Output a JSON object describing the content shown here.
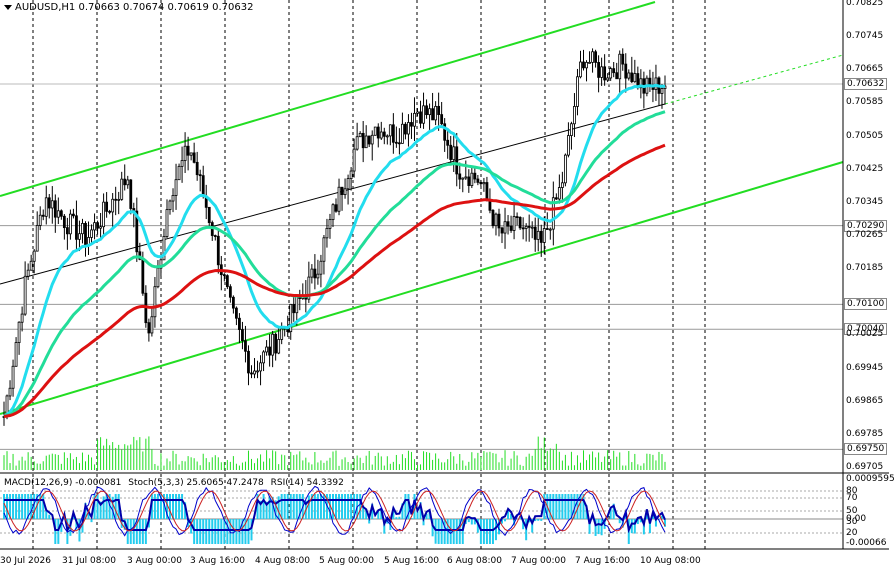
{
  "header": {
    "symbol": "AUDUSD,H1",
    "ohlc": "0.70663 0.70674 0.70619 0.70632"
  },
  "indicators": {
    "macd": "MACD(12,26,9) -0.000081",
    "stoch": "Stoch(5,3,3) 25.6065 47.2478",
    "rsi": "RSI(14) 54.3392"
  },
  "price_axis": [
    {
      "label": "0.70825",
      "boxed": false
    },
    {
      "label": "0.70745",
      "boxed": false
    },
    {
      "label": "0.70665",
      "boxed": false
    },
    {
      "label": "0.70632",
      "boxed": true
    },
    {
      "label": "0.70585",
      "boxed": false
    },
    {
      "label": "0.70505",
      "boxed": false
    },
    {
      "label": "0.70425",
      "boxed": false
    },
    {
      "label": "0.70345",
      "boxed": false
    },
    {
      "label": "0.70290",
      "boxed": true
    },
    {
      "label": "0.70265",
      "boxed": false
    },
    {
      "label": "0.70185",
      "boxed": false
    },
    {
      "label": "0.70100",
      "boxed": true
    },
    {
      "label": "0.70040",
      "boxed": true
    },
    {
      "label": "0.70025",
      "boxed": false
    },
    {
      "label": "0.69945",
      "boxed": false
    },
    {
      "label": "0.69865",
      "boxed": false
    },
    {
      "label": "0.69785",
      "boxed": false
    },
    {
      "label": "0.69750",
      "boxed": true
    },
    {
      "label": "0.69705",
      "boxed": false
    }
  ],
  "indicator_axis": [
    "0.0009595",
    "80",
    "70",
    "50",
    "30",
    "0.00",
    "20",
    "-0.00066"
  ],
  "time_axis": [
    "30 Jul 2026",
    "31 Jul 08:00",
    "3 Aug 00:00",
    "3 Aug 16:00",
    "4 Aug 08:00",
    "5 Aug 00:00",
    "5 Aug 16:00",
    "6 Aug 08:00",
    "7 Aug 00:00",
    "7 Aug 16:00",
    "10 Aug 08:00"
  ],
  "colors": {
    "bullish_channel": "#22dd22",
    "ema_fast": "#22ddee",
    "ema_mid": "#22dd99",
    "ema_slow": "#dd1111",
    "candles": "#000000",
    "macd_hist": "#22ccee",
    "signal": "#0000aa",
    "stoch_main": "#0000cc",
    "stoch_signal": "#cc2222"
  },
  "chart_data": {
    "type": "candlestick",
    "symbol": "AUDUSD",
    "timeframe": "H1",
    "last_close": 0.70632,
    "ylim": [
      0.69705,
      0.70825
    ],
    "horizontal_levels": [
      0.7029,
      0.701,
      0.7004,
      0.6975
    ],
    "close_path": [
      0.6983,
      0.7014,
      0.7036,
      0.703,
      0.7026,
      0.7033,
      0.7041,
      0.7002,
      0.7037,
      0.7048,
      0.703,
      0.7008,
      0.6994,
      0.7,
      0.7008,
      0.7017,
      0.7033,
      0.7048,
      0.7053,
      0.7051,
      0.7057,
      0.7055,
      0.7043,
      0.704,
      0.7027,
      0.7029,
      0.7024,
      0.7039,
      0.707,
      0.7066,
      0.7068,
      0.7062,
      0.70632
    ]
  }
}
